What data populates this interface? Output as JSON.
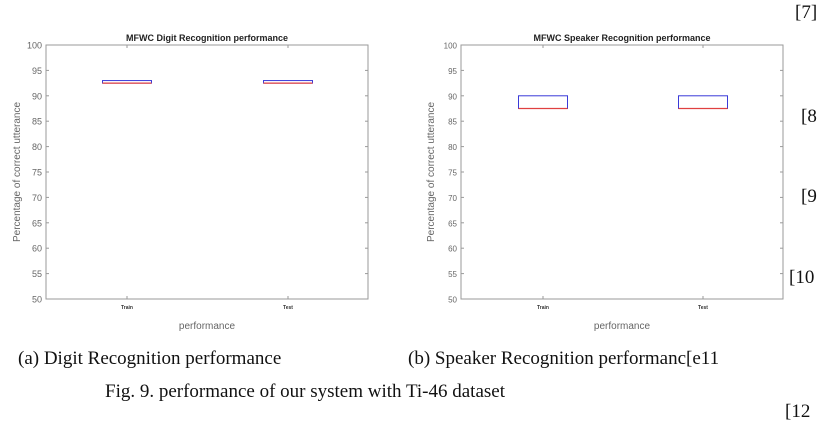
{
  "chart_data": [
    {
      "type": "box",
      "title": "MFWC Digit Recognition  performance",
      "xlabel": "performance",
      "ylabel": "Percentage of correct utterance",
      "ylim": [
        50,
        100
      ],
      "yticks": [
        "50",
        "55",
        "60",
        "65",
        "70",
        "75",
        "80",
        "85",
        "90",
        "95",
        "100"
      ],
      "categories": [
        "Train",
        "Test"
      ],
      "boxes": [
        {
          "q1": 92.5,
          "median": 92.5,
          "q3": 93.0
        },
        {
          "q1": 92.5,
          "median": 92.5,
          "q3": 93.0
        }
      ]
    },
    {
      "type": "box",
      "title": "MFWC Speaker Recognition  performance",
      "xlabel": "performance",
      "ylabel": "Percentage of correct utterance",
      "ylim": [
        50,
        100
      ],
      "yticks": [
        "50",
        "55",
        "60",
        "65",
        "70",
        "75",
        "80",
        "85",
        "90",
        "95",
        "100"
      ],
      "categories": [
        "Train",
        "Test"
      ],
      "boxes": [
        {
          "q1": 87.5,
          "median": 87.5,
          "q3": 90.0
        },
        {
          "q1": 87.5,
          "median": 87.5,
          "q3": 90.0
        }
      ]
    }
  ],
  "colors": {
    "box": "#3a3ad8",
    "median": "#e04040",
    "axis": "#9a9a9a"
  },
  "captions": {
    "a": "(a) Digit Recognition performance",
    "b": "(b) Speaker Recognition performanc[e11",
    "figure": "Fig. 9.  performance of our system with Ti-46 dataset"
  },
  "margin_refs": [
    "[7]",
    "[8",
    "[9",
    "[10",
    "[12"
  ]
}
